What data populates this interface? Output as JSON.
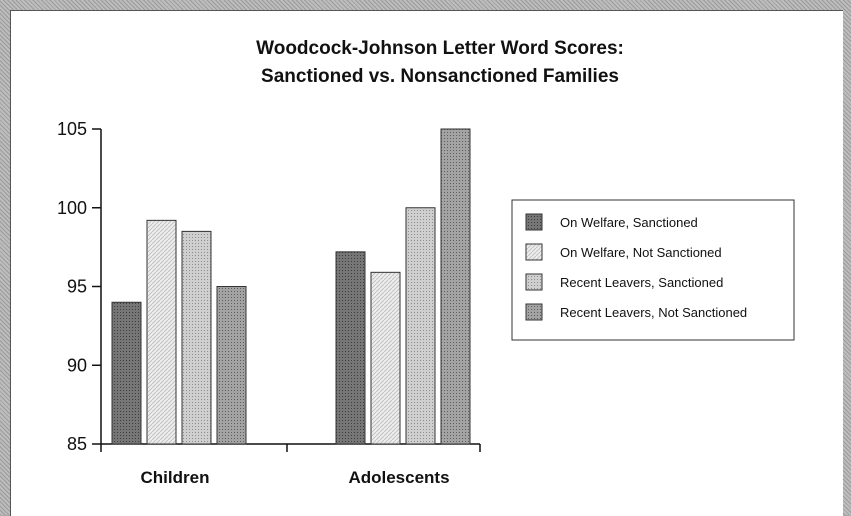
{
  "chart_data": {
    "type": "bar",
    "title": [
      "Woodcock-Johnson Letter Word Scores:",
      "Sanctioned vs. Nonsanctioned Families"
    ],
    "xlabel": "",
    "ylabel": "",
    "categories": [
      "Children",
      "Adolescents"
    ],
    "ylim": [
      85,
      105
    ],
    "yticks": [
      "105",
      "100",
      "95",
      "90",
      "85"
    ],
    "grid": false,
    "legend_placement": "right",
    "series": [
      {
        "name": "On Welfare, Sanctioned",
        "values": [
          94.0,
          97.2
        ],
        "color": "#6e6e6e"
      },
      {
        "name": "On Welfare, Not Sanctioned",
        "values": [
          99.2,
          95.9
        ],
        "color": "#e6e6e6"
      },
      {
        "name": "Recent Leavers, Sanctioned",
        "values": [
          98.5,
          100.0
        ],
        "color": "#c4c4c4"
      },
      {
        "name": "Recent Leavers, Not Sanctioned",
        "values": [
          95.0,
          105.0
        ],
        "color": "#999999"
      }
    ]
  }
}
